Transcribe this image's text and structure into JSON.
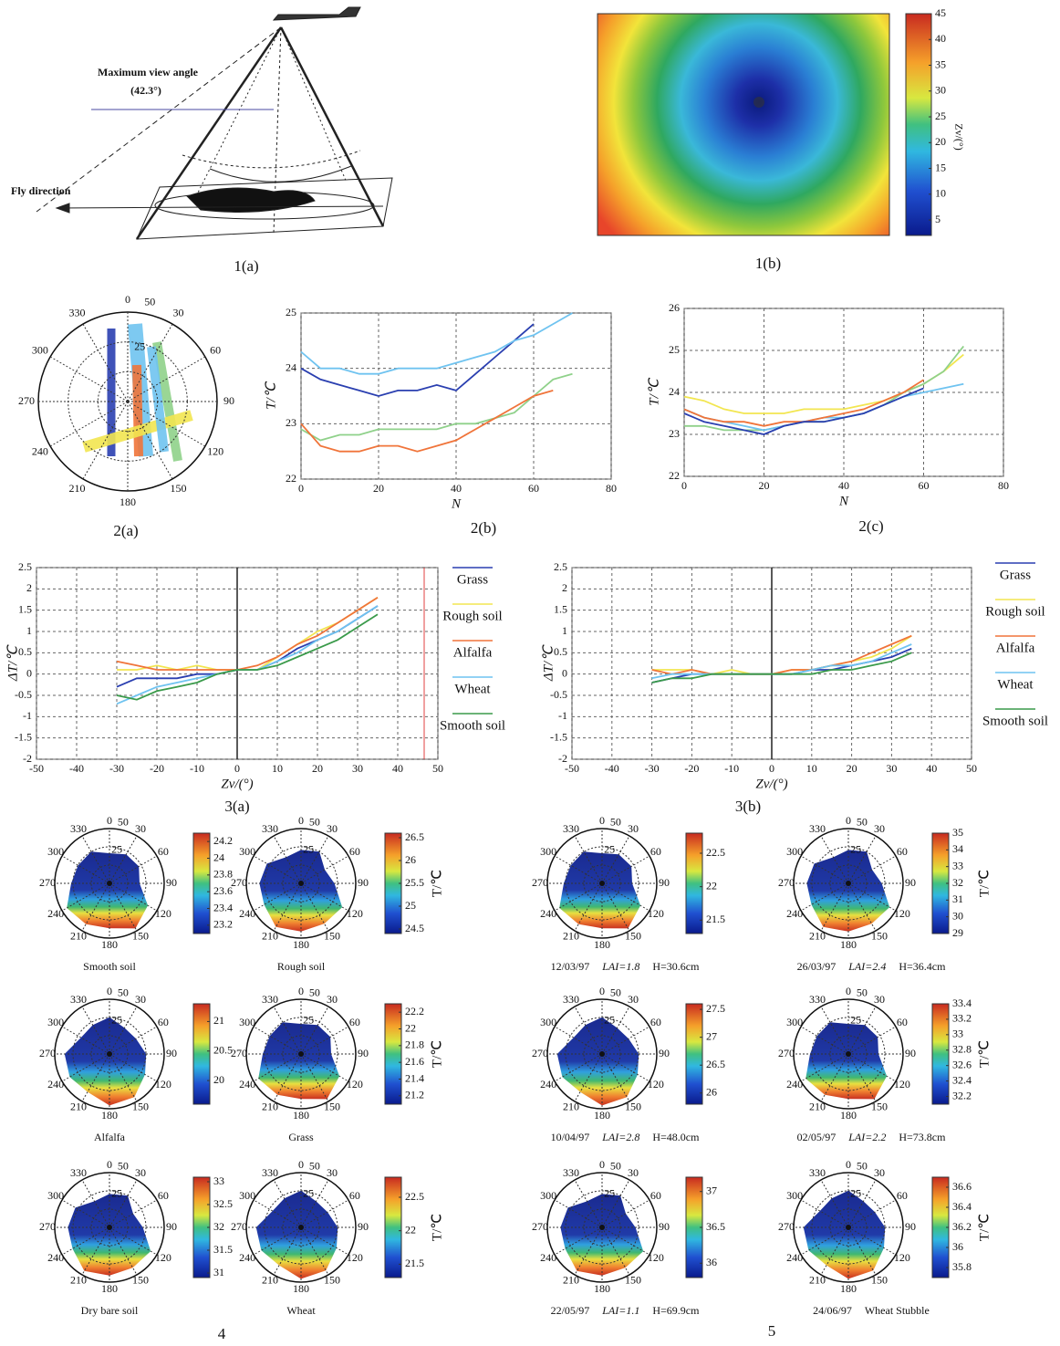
{
  "chart_data": [
    {
      "type": "diagram",
      "view_angle_label": "Maximum view angle",
      "view_angle": "(42.3°)",
      "direction_label": "Fly direction",
      "caption": "1(a)"
    },
    {
      "type": "heatmap",
      "colorbar_label": "Zv/(°)",
      "clim": [
        2,
        45
      ],
      "colorbar_ticks": [
        5,
        10,
        15,
        20,
        25,
        30,
        35,
        40,
        45
      ],
      "caption": "1(b)"
    },
    {
      "type": "polar",
      "angle_labels": [
        0,
        30,
        60,
        90,
        120,
        150,
        180,
        210,
        240,
        270,
        300,
        330
      ],
      "radial_labels": [
        25,
        50
      ],
      "caption": "2(a)"
    },
    {
      "type": "line",
      "caption": "2(b)",
      "xlabel": "N",
      "ylabel": "T/℃",
      "xlim": [
        0,
        80
      ],
      "ylim": [
        22,
        25
      ],
      "xticks": [
        0,
        20,
        40,
        60,
        80
      ],
      "yticks": [
        22,
        23,
        24,
        25
      ],
      "grid": true,
      "series": [
        {
          "color": "#2a3fb0",
          "x": [
            0,
            5,
            10,
            15,
            20,
            25,
            30,
            35,
            40,
            45,
            50,
            55,
            60
          ],
          "values": [
            24.0,
            23.8,
            23.7,
            23.6,
            23.5,
            23.6,
            23.6,
            23.7,
            23.6,
            23.9,
            24.2,
            24.5,
            24.8
          ]
        },
        {
          "color": "#6fc3f0",
          "x": [
            0,
            5,
            10,
            15,
            20,
            25,
            30,
            35,
            40,
            45,
            50,
            55,
            60,
            65,
            70
          ],
          "values": [
            24.3,
            24.0,
            24.0,
            23.9,
            23.9,
            24.0,
            24.0,
            24.0,
            24.1,
            24.2,
            24.3,
            24.5,
            24.6,
            24.8,
            25.0
          ]
        },
        {
          "color": "#8fd18a",
          "x": [
            0,
            5,
            10,
            15,
            20,
            25,
            30,
            35,
            40,
            45,
            50,
            55,
            60,
            65,
            70
          ],
          "values": [
            22.9,
            22.7,
            22.8,
            22.8,
            22.9,
            22.9,
            22.9,
            22.9,
            23.0,
            23.0,
            23.1,
            23.2,
            23.5,
            23.8,
            23.9
          ]
        },
        {
          "color": "#f0743a",
          "x": [
            0,
            5,
            10,
            15,
            20,
            25,
            30,
            35,
            40,
            45,
            50,
            55,
            60,
            65
          ],
          "values": [
            23.0,
            22.6,
            22.5,
            22.5,
            22.6,
            22.6,
            22.5,
            22.6,
            22.7,
            22.9,
            23.1,
            23.3,
            23.5,
            23.6
          ]
        }
      ]
    },
    {
      "type": "line",
      "caption": "2(c)",
      "xlabel": "N",
      "ylabel": "T/℃",
      "xlim": [
        0,
        80
      ],
      "ylim": [
        22,
        26
      ],
      "xticks": [
        0,
        20,
        40,
        60,
        80
      ],
      "yticks": [
        22,
        23,
        24,
        25,
        26
      ],
      "grid": true,
      "series": [
        {
          "color": "#f2e650",
          "x": [
            0,
            5,
            10,
            15,
            20,
            25,
            30,
            35,
            40,
            45,
            50,
            55,
            60,
            65,
            70
          ],
          "values": [
            23.9,
            23.8,
            23.6,
            23.5,
            23.5,
            23.5,
            23.6,
            23.6,
            23.6,
            23.7,
            23.8,
            24.0,
            24.2,
            24.5,
            24.9
          ]
        },
        {
          "color": "#8fd18a",
          "x": [
            0,
            5,
            10,
            15,
            20,
            25,
            30,
            35,
            40,
            45,
            50,
            55,
            60,
            65,
            70
          ],
          "values": [
            23.2,
            23.2,
            23.1,
            23.1,
            23.1,
            23.2,
            23.3,
            23.3,
            23.4,
            23.5,
            23.7,
            24.0,
            24.2,
            24.5,
            25.1
          ]
        },
        {
          "color": "#6fc3f0",
          "x": [
            0,
            5,
            10,
            15,
            20,
            25,
            30,
            35,
            40,
            45,
            50,
            55,
            60,
            65,
            70
          ],
          "values": [
            23.6,
            23.4,
            23.3,
            23.2,
            23.1,
            23.2,
            23.3,
            23.4,
            23.4,
            23.5,
            23.7,
            23.9,
            24.0,
            24.1,
            24.2
          ]
        },
        {
          "color": "#f0743a",
          "x": [
            0,
            5,
            10,
            15,
            20,
            25,
            30,
            35,
            40,
            45,
            50,
            55,
            60
          ],
          "values": [
            23.6,
            23.4,
            23.3,
            23.3,
            23.2,
            23.3,
            23.3,
            23.4,
            23.5,
            23.6,
            23.8,
            24.0,
            24.3
          ]
        },
        {
          "color": "#2a3fb0",
          "x": [
            0,
            5,
            10,
            15,
            20,
            25,
            30,
            35,
            40,
            45,
            50,
            55,
            60
          ],
          "values": [
            23.5,
            23.3,
            23.2,
            23.1,
            23.0,
            23.2,
            23.3,
            23.3,
            23.4,
            23.5,
            23.7,
            23.9,
            24.1
          ]
        }
      ]
    },
    {
      "type": "line",
      "caption": "3(a)",
      "xlabel": "Zv/(°)",
      "ylabel": "ΔT/℃",
      "xlim": [
        -50,
        50
      ],
      "ylim": [
        -2,
        2.5
      ],
      "xticks": [
        -50,
        -40,
        -30,
        -20,
        -10,
        0,
        10,
        20,
        30,
        40,
        50
      ],
      "yticks": [
        -2,
        -1.5,
        -1,
        -0.5,
        0,
        0.5,
        1,
        1.5,
        2,
        2.5
      ],
      "grid": true,
      "legend": "right",
      "series": [
        {
          "name": "Grass",
          "color": "#2a3fb0",
          "x": [
            -30,
            -25,
            -20,
            -15,
            -10,
            -5,
            0,
            5,
            10,
            15,
            20,
            25,
            30,
            35
          ],
          "values": [
            -0.3,
            -0.1,
            -0.1,
            -0.1,
            0,
            0,
            0.1,
            0.1,
            0.3,
            0.6,
            0.8,
            1.0,
            1.3,
            1.6
          ]
        },
        {
          "name": "Rough soil",
          "color": "#f2e650",
          "x": [
            -30,
            -25,
            -20,
            -15,
            -10,
            -5,
            0,
            5,
            10,
            15,
            20,
            25,
            30,
            35
          ],
          "values": [
            0.1,
            0.1,
            0.2,
            0.1,
            0.2,
            0.1,
            0.1,
            0.1,
            0.4,
            0.7,
            1.0,
            1.2,
            1.5,
            1.8
          ]
        },
        {
          "name": "Alfalfa",
          "color": "#f0743a",
          "x": [
            -30,
            -25,
            -20,
            -15,
            -10,
            -5,
            0,
            5,
            10,
            15,
            20,
            25,
            30,
            35
          ],
          "values": [
            0.3,
            0.2,
            0.1,
            0.1,
            0.1,
            0.1,
            0.1,
            0.2,
            0.4,
            0.7,
            0.9,
            1.2,
            1.5,
            1.8
          ]
        },
        {
          "name": "Wheat",
          "color": "#6fc3f0",
          "x": [
            -30,
            -25,
            -20,
            -15,
            -10,
            -5,
            0,
            5,
            10,
            15,
            20,
            25,
            30,
            35
          ],
          "values": [
            -0.7,
            -0.5,
            -0.3,
            -0.2,
            -0.1,
            0,
            0.1,
            0.1,
            0.3,
            0.5,
            0.8,
            1.0,
            1.3,
            1.6
          ]
        },
        {
          "name": "Smooth soil",
          "color": "#3a9a4a",
          "x": [
            -30,
            -25,
            -20,
            -15,
            -10,
            -5,
            0,
            5,
            10,
            15,
            20,
            25,
            30,
            35
          ],
          "values": [
            -0.5,
            -0.6,
            -0.4,
            -0.3,
            -0.2,
            0,
            0.1,
            0.1,
            0.2,
            0.4,
            0.6,
            0.8,
            1.1,
            1.4
          ]
        }
      ]
    },
    {
      "type": "line",
      "caption": "3(b)",
      "xlabel": "Zv/(°)",
      "ylabel": "ΔT/℃",
      "xlim": [
        -50,
        50
      ],
      "ylim": [
        -2,
        2.5
      ],
      "xticks": [
        -50,
        -40,
        -30,
        -20,
        -10,
        0,
        10,
        20,
        30,
        40,
        50
      ],
      "yticks": [
        -2,
        -1.5,
        -1,
        -0.5,
        0,
        0.5,
        1,
        1.5,
        2,
        2.5
      ],
      "grid": true,
      "legend": "right",
      "series": [
        {
          "name": "Grass",
          "color": "#2a3fb0",
          "x": [
            -30,
            -25,
            -20,
            -15,
            -10,
            -5,
            0,
            5,
            10,
            15,
            20,
            25,
            30,
            35
          ],
          "values": [
            -0.2,
            -0.1,
            0,
            0,
            0,
            0,
            0,
            0,
            0.1,
            0.1,
            0.2,
            0.3,
            0.4,
            0.6
          ]
        },
        {
          "name": "Rough soil",
          "color": "#f2e650",
          "x": [
            -30,
            -25,
            -20,
            -15,
            -10,
            -5,
            0,
            5,
            10,
            15,
            20,
            25,
            30,
            35
          ],
          "values": [
            0.1,
            0.1,
            0.1,
            0,
            0.1,
            0,
            0,
            0.1,
            0.1,
            0.2,
            0.3,
            0.4,
            0.6,
            0.9
          ]
        },
        {
          "name": "Alfalfa",
          "color": "#f0743a",
          "x": [
            -30,
            -25,
            -20,
            -15,
            -10,
            -5,
            0,
            5,
            10,
            15,
            20,
            25,
            30,
            35
          ],
          "values": [
            0.1,
            0,
            0.1,
            0,
            0,
            0,
            0,
            0.1,
            0.1,
            0.2,
            0.3,
            0.5,
            0.7,
            0.9
          ]
        },
        {
          "name": "Wheat",
          "color": "#6fc3f0",
          "x": [
            -30,
            -25,
            -20,
            -15,
            -10,
            -5,
            0,
            5,
            10,
            15,
            20,
            25,
            30,
            35
          ],
          "values": [
            -0.1,
            0,
            0,
            0,
            0,
            0,
            0,
            0,
            0.1,
            0.2,
            0.2,
            0.3,
            0.5,
            0.7
          ]
        },
        {
          "name": "Smooth soil",
          "color": "#3a9a4a",
          "x": [
            -30,
            -25,
            -20,
            -15,
            -10,
            -5,
            0,
            5,
            10,
            15,
            20,
            25,
            30,
            35
          ],
          "values": [
            -0.2,
            -0.1,
            -0.1,
            0,
            0,
            0,
            0,
            0,
            0,
            0.1,
            0.1,
            0.2,
            0.3,
            0.5
          ]
        }
      ]
    },
    {
      "type": "polar_heatmap",
      "caption": [
        "Smooth soil"
      ],
      "clim": [
        23.1,
        24.3
      ],
      "colorbar_ticks": [
        23.2,
        23.4,
        23.6,
        23.8,
        24,
        24.2
      ]
    },
    {
      "type": "polar_heatmap",
      "caption": [
        "Rough soil"
      ],
      "clim": [
        24.4,
        26.6
      ],
      "colorbar_ticks": [
        24.5,
        25,
        25.5,
        26,
        26.5
      ],
      "colorbar_label": "T/℃"
    },
    {
      "type": "polar_heatmap",
      "caption": [
        "Alfalfa"
      ],
      "clim": [
        19.6,
        21.3
      ],
      "colorbar_ticks": [
        20,
        20.5,
        21
      ]
    },
    {
      "type": "polar_heatmap",
      "caption": [
        "Grass"
      ],
      "clim": [
        21.1,
        22.3
      ],
      "colorbar_ticks": [
        21.2,
        21.4,
        21.6,
        21.8,
        22,
        22.2
      ],
      "colorbar_label": "T/℃"
    },
    {
      "type": "polar_heatmap",
      "caption": [
        "Dry bare soil"
      ],
      "clim": [
        30.9,
        33.1
      ],
      "colorbar_ticks": [
        31,
        31.5,
        32,
        32.5,
        33
      ]
    },
    {
      "type": "polar_heatmap",
      "caption": [
        "Wheat"
      ],
      "clim": [
        21.3,
        22.8
      ],
      "colorbar_ticks": [
        21.5,
        22,
        22.5
      ],
      "colorbar_label": "T/℃"
    },
    {
      "type": "polar_heatmap",
      "caption": [
        "12/03/97",
        "LAI=1.8",
        "H=30.6cm"
      ],
      "clim": [
        21.3,
        22.8
      ],
      "colorbar_ticks": [
        21.5,
        22,
        22.5
      ]
    },
    {
      "type": "polar_heatmap",
      "caption": [
        "26/03/97",
        "LAI=2.4",
        "H=36.4cm"
      ],
      "clim": [
        29,
        35
      ],
      "colorbar_ticks": [
        29,
        30,
        31,
        32,
        33,
        34,
        35
      ],
      "colorbar_label": "T/℃"
    },
    {
      "type": "polar_heatmap",
      "caption": [
        "10/04/97",
        "LAI=2.8",
        "H=48.0cm"
      ],
      "clim": [
        25.8,
        27.6
      ],
      "colorbar_ticks": [
        26,
        26.5,
        27,
        27.5
      ]
    },
    {
      "type": "polar_heatmap",
      "caption": [
        "02/05/97",
        "LAI=2.2",
        "H=73.8cm"
      ],
      "clim": [
        32.1,
        33.4
      ],
      "colorbar_ticks": [
        32.2,
        32.4,
        32.6,
        32.8,
        33,
        33.2,
        33.4
      ],
      "colorbar_label": "T/℃"
    },
    {
      "type": "polar_heatmap",
      "caption": [
        "22/05/97",
        "LAI=1.1",
        "H=69.9cm"
      ],
      "clim": [
        35.8,
        37.2
      ],
      "colorbar_ticks": [
        36,
        36.5,
        37
      ]
    },
    {
      "type": "polar_heatmap",
      "caption": [
        "24/06/97",
        "Wheat Stubble"
      ],
      "clim": [
        35.7,
        36.7
      ],
      "colorbar_ticks": [
        35.8,
        36,
        36.2,
        36.4,
        36.6
      ],
      "colorbar_label": "T/℃"
    }
  ],
  "figure_labels": [
    "4",
    "5"
  ]
}
